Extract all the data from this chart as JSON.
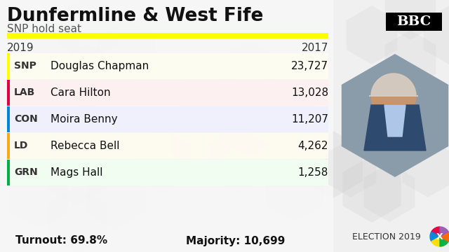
{
  "title": "Dunfermline & West Fife",
  "subtitle": "SNP hold seat",
  "year_left": "2019",
  "year_right": "2017",
  "parties": [
    "SNP",
    "LAB",
    "CON",
    "LD",
    "GRN"
  ],
  "candidates": [
    "Douglas Chapman",
    "Cara Hilton",
    "Moira Benny",
    "Rebecca Bell",
    "Mags Hall"
  ],
  "votes": [
    "23,727",
    "13,028",
    "11,207",
    "4,262",
    "1,258"
  ],
  "party_colors": [
    "#FFFF00",
    "#E4003B",
    "#0087DC",
    "#FAA61A",
    "#00B140"
  ],
  "party_bg_colors": [
    "#FFFEF0",
    "#FFF0F0",
    "#F0F0FF",
    "#FFFBF0",
    "#F0FFF0"
  ],
  "turnout": "Turnout: 69.8%",
  "majority": "Majority: 10,699",
  "bg_color": "#f0f0f0",
  "header_line_color": "#FFFF00",
  "bbc_text": "BBC",
  "election_text": "ELECTION 2019",
  "photo_hex_color": "#8a9baa",
  "photo_bg_color": "#7a8f9e"
}
